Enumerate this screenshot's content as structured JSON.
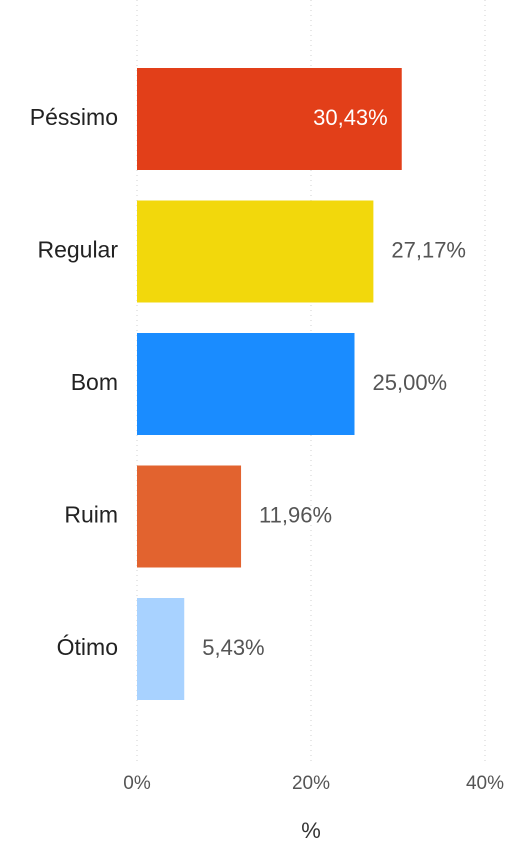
{
  "chart_data": {
    "type": "hbar",
    "categories": [
      "Péssimo",
      "Regular",
      "Bom",
      "Ruim",
      "Ótimo"
    ],
    "values": [
      30.43,
      27.17,
      25.0,
      11.96,
      5.43
    ],
    "value_labels": [
      "30,43%",
      "27,17%",
      "25,00%",
      "11,96%",
      "5,43%"
    ],
    "colors": [
      "#e23f19",
      "#f2d80c",
      "#1a8cff",
      "#e2632f",
      "#a8d2ff"
    ],
    "xlim": [
      0,
      40
    ],
    "xticks": [
      {
        "value": 0,
        "label": "0%"
      },
      {
        "value": 20,
        "label": "20%"
      },
      {
        "value": 40,
        "label": "40%"
      }
    ],
    "x_label": "%",
    "grid": true
  }
}
